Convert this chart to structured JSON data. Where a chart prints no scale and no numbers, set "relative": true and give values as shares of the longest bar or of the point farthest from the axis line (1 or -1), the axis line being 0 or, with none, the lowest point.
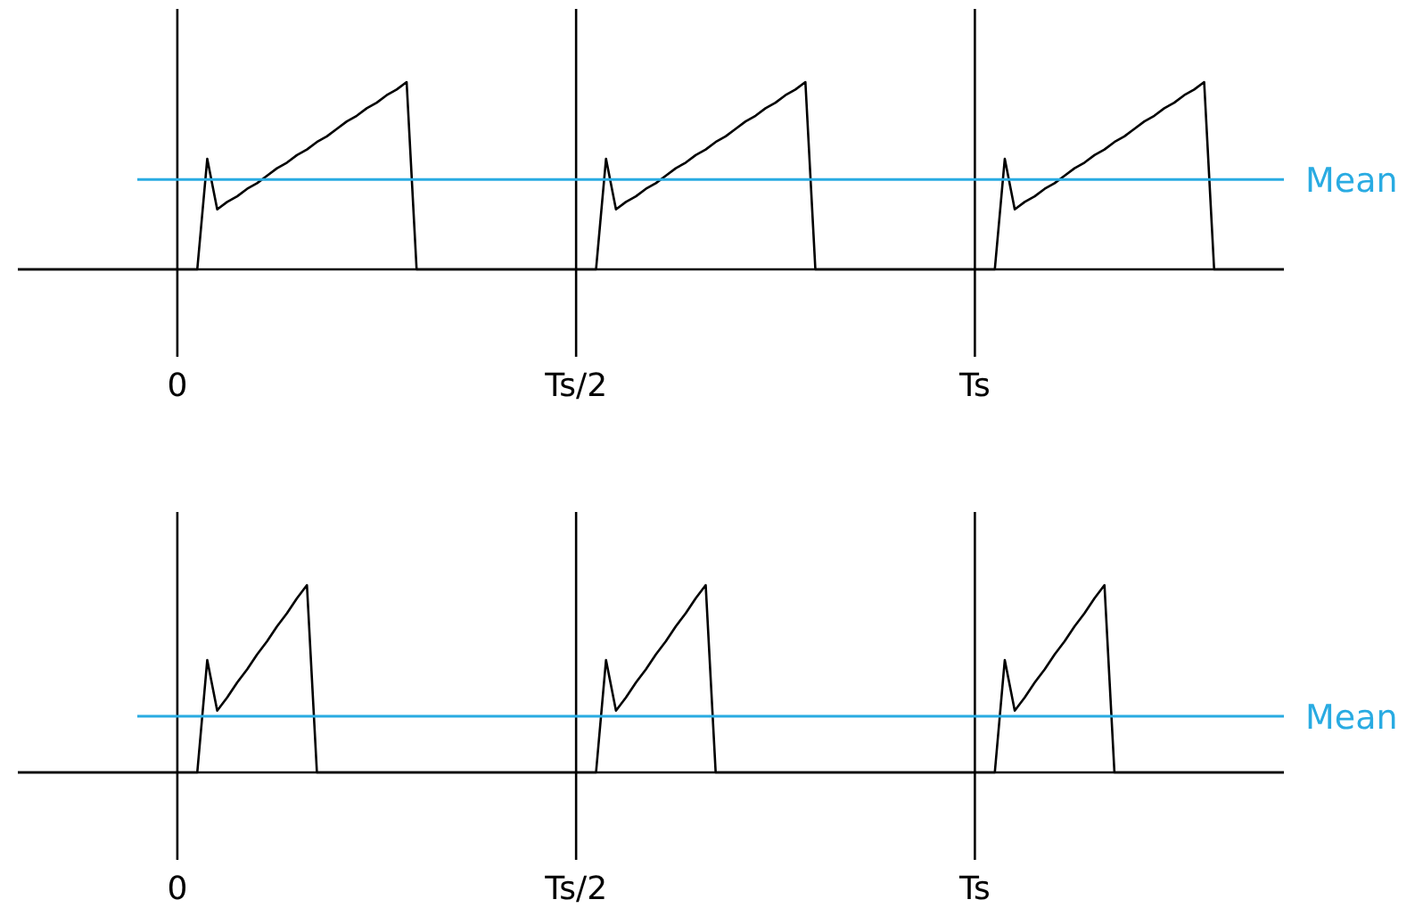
{
  "chart_data": [
    {
      "type": "line",
      "relative": true,
      "grid": "x",
      "tick_labels": "x",
      "line_style": "solid",
      "categories": [
        null,
        null,
        null,
        null,
        null,
        null,
        null,
        null,
        null,
        null,
        null,
        null,
        null,
        null,
        null,
        null,
        "0",
        null,
        null,
        null,
        null,
        null,
        null,
        null,
        null,
        null,
        null,
        null,
        null,
        null,
        null,
        null,
        null,
        null,
        null,
        null,
        null,
        null,
        null,
        null,
        null,
        null,
        null,
        null,
        null,
        null,
        null,
        null,
        null,
        null,
        null,
        null,
        null,
        null,
        null,
        null,
        "Ts/2",
        null,
        null,
        null,
        null,
        null,
        null,
        null,
        null,
        null,
        null,
        null,
        null,
        null,
        null,
        null,
        null,
        null,
        null,
        null,
        null,
        null,
        null,
        null,
        null,
        null,
        null,
        null,
        null,
        null,
        null,
        null,
        null,
        null,
        null,
        null,
        null,
        null,
        null,
        null,
        "Ts",
        null,
        null,
        null,
        null,
        null,
        null,
        null,
        null,
        null,
        null,
        null,
        null,
        null,
        null,
        null,
        null,
        null,
        null,
        null,
        null,
        null,
        null,
        null,
        null,
        null,
        null,
        null,
        null,
        null,
        null,
        null
      ],
      "series": [
        {
          "color": "#000000",
          "values": [
            0,
            0,
            0,
            0,
            0,
            0,
            0,
            0,
            0,
            0,
            0,
            0,
            0,
            0,
            0,
            0,
            0,
            0,
            0,
            0.59,
            0.32,
            0.36,
            0.39,
            0.43,
            0.46,
            0.5,
            0.54,
            0.57,
            0.61,
            0.64,
            0.68,
            0.71,
            0.75,
            0.79,
            0.82,
            0.86,
            0.89,
            0.93,
            0.96,
            1,
            0,
            0,
            0,
            0,
            0,
            0,
            0,
            0,
            0,
            0,
            0,
            0,
            0,
            0,
            0,
            0,
            0,
            0,
            0,
            0.59,
            0.32,
            0.36,
            0.39,
            0.43,
            0.46,
            0.5,
            0.54,
            0.57,
            0.61,
            0.64,
            0.68,
            0.71,
            0.75,
            0.79,
            0.82,
            0.86,
            0.89,
            0.93,
            0.96,
            1,
            0,
            0,
            0,
            0,
            0,
            0,
            0,
            0,
            0,
            0,
            0,
            0,
            0,
            0,
            0,
            0,
            0,
            0,
            0,
            0.59,
            0.32,
            0.36,
            0.39,
            0.43,
            0.46,
            0.5,
            0.54,
            0.57,
            0.61,
            0.64,
            0.68,
            0.71,
            0.75,
            0.79,
            0.82,
            0.86,
            0.89,
            0.93,
            0.96,
            1,
            0,
            0,
            0,
            0,
            0,
            0,
            0,
            0
          ]
        }
      ],
      "ref_lines": [
        {
          "axis": "y",
          "value": 0.48,
          "label": "Mean",
          "color": "#29abe2"
        }
      ]
    },
    {
      "type": "line",
      "relative": true,
      "grid": "x",
      "tick_labels": "x",
      "line_style": "solid",
      "categories": [
        null,
        null,
        null,
        null,
        null,
        null,
        null,
        null,
        null,
        null,
        null,
        null,
        null,
        null,
        null,
        null,
        "0",
        null,
        null,
        null,
        null,
        null,
        null,
        null,
        null,
        null,
        null,
        null,
        null,
        null,
        null,
        null,
        null,
        null,
        null,
        null,
        null,
        null,
        null,
        null,
        null,
        null,
        null,
        null,
        null,
        null,
        null,
        null,
        null,
        null,
        null,
        null,
        null,
        null,
        null,
        null,
        "Ts/2",
        null,
        null,
        null,
        null,
        null,
        null,
        null,
        null,
        null,
        null,
        null,
        null,
        null,
        null,
        null,
        null,
        null,
        null,
        null,
        null,
        null,
        null,
        null,
        null,
        null,
        null,
        null,
        null,
        null,
        null,
        null,
        null,
        null,
        null,
        null,
        null,
        null,
        null,
        null,
        "Ts",
        null,
        null,
        null,
        null,
        null,
        null,
        null,
        null,
        null,
        null,
        null,
        null,
        null,
        null,
        null,
        null,
        null,
        null,
        null,
        null,
        null,
        null,
        null,
        null,
        null,
        null,
        null,
        null,
        null,
        null,
        null
      ],
      "series": [
        {
          "color": "#000000",
          "values": [
            0,
            0,
            0,
            0,
            0,
            0,
            0,
            0,
            0,
            0,
            0,
            0,
            0,
            0,
            0,
            0,
            0,
            0,
            0,
            0.6,
            0.33,
            0.4,
            0.48,
            0.55,
            0.63,
            0.7,
            0.78,
            0.85,
            0.93,
            1,
            0,
            0,
            0,
            0,
            0,
            0,
            0,
            0,
            0,
            0,
            0,
            0,
            0,
            0,
            0,
            0,
            0,
            0,
            0,
            0,
            0,
            0,
            0,
            0,
            0,
            0,
            0,
            0,
            0,
            0.6,
            0.33,
            0.4,
            0.48,
            0.55,
            0.63,
            0.7,
            0.78,
            0.85,
            0.93,
            1,
            0,
            0,
            0,
            0,
            0,
            0,
            0,
            0,
            0,
            0,
            0,
            0,
            0,
            0,
            0,
            0,
            0,
            0,
            0,
            0,
            0,
            0,
            0,
            0,
            0,
            0,
            0,
            0,
            0,
            0.6,
            0.33,
            0.4,
            0.48,
            0.55,
            0.63,
            0.7,
            0.78,
            0.85,
            0.93,
            1,
            0,
            0,
            0,
            0,
            0,
            0,
            0,
            0,
            0,
            0,
            0,
            0,
            0,
            0,
            0,
            0,
            0,
            0
          ]
        }
      ],
      "ref_lines": [
        {
          "axis": "y",
          "value": 0.3,
          "label": "Mean",
          "color": "#29abe2"
        }
      ]
    }
  ]
}
